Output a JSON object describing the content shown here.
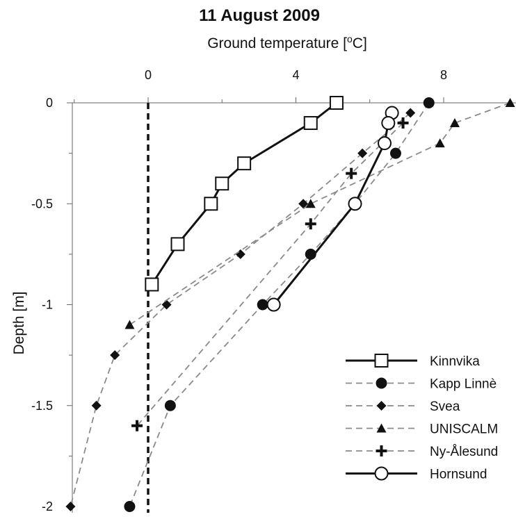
{
  "chart_data": {
    "type": "line",
    "title": "11 August 2009",
    "xlabel": "Ground temperature [oC]",
    "xlabel_main": "Ground temperature [",
    "xlabel_sup": "o",
    "xlabel_end": "C]",
    "ylabel": "Depth [m]",
    "xlim": [
      -2.1,
      10
    ],
    "ylim": [
      -2,
      0
    ],
    "x_ticks": [
      0,
      4,
      8
    ],
    "x_tick_labels": [
      "0",
      "4",
      "8"
    ],
    "y_ticks": [
      0,
      -0.5,
      -1,
      -1.5,
      -2
    ],
    "y_tick_labels": [
      "0",
      "-0.5",
      "-1",
      "-1.5",
      "-2"
    ],
    "legend_position": "bottom-right",
    "zero_line": true,
    "series": [
      {
        "name": "Kinnvika",
        "marker": "open-square",
        "line": "solid",
        "color": "#111111",
        "points": [
          [
            5.1,
            0
          ],
          [
            4.4,
            -0.1
          ],
          [
            2.6,
            -0.3
          ],
          [
            2.0,
            -0.4
          ],
          [
            1.7,
            -0.5
          ],
          [
            0.8,
            -0.7
          ],
          [
            0.1,
            -0.9
          ]
        ]
      },
      {
        "name": "Kapp Linnè",
        "marker": "filled-circle",
        "line": "dashed",
        "color": "#888888",
        "points": [
          [
            7.6,
            0
          ],
          [
            6.7,
            -0.25
          ],
          [
            5.6,
            -0.5
          ],
          [
            4.4,
            -0.75
          ],
          [
            3.1,
            -1.0
          ],
          [
            0.6,
            -1.5
          ],
          [
            -0.5,
            -2.0
          ]
        ]
      },
      {
        "name": "Svea",
        "marker": "filled-diamond",
        "line": "dashed",
        "color": "#888888",
        "points": [
          [
            7.1,
            -0.05
          ],
          [
            5.8,
            -0.25
          ],
          [
            4.2,
            -0.5
          ],
          [
            2.5,
            -0.75
          ],
          [
            0.5,
            -1.0
          ],
          [
            -0.9,
            -1.25
          ],
          [
            -1.4,
            -1.5
          ],
          [
            -2.1,
            -2.0
          ]
        ]
      },
      {
        "name": "UNISCALM",
        "marker": "filled-triangle",
        "line": "dashed",
        "color": "#888888",
        "points": [
          [
            9.8,
            0
          ],
          [
            8.3,
            -0.1
          ],
          [
            7.9,
            -0.2
          ],
          [
            4.4,
            -0.5
          ],
          [
            -0.5,
            -1.1
          ]
        ]
      },
      {
        "name": "Ny-Ålesund",
        "marker": "plus",
        "line": "dashed",
        "color": "#888888",
        "points": [
          [
            6.9,
            -0.1
          ],
          [
            5.5,
            -0.35
          ],
          [
            4.4,
            -0.6
          ],
          [
            -0.3,
            -1.6
          ]
        ]
      },
      {
        "name": "Hornsund",
        "marker": "open-circle",
        "line": "solid",
        "color": "#111111",
        "points": [
          [
            6.6,
            -0.05
          ],
          [
            6.5,
            -0.1
          ],
          [
            6.4,
            -0.2
          ],
          [
            5.6,
            -0.5
          ],
          [
            3.4,
            -1.0
          ]
        ]
      }
    ]
  }
}
